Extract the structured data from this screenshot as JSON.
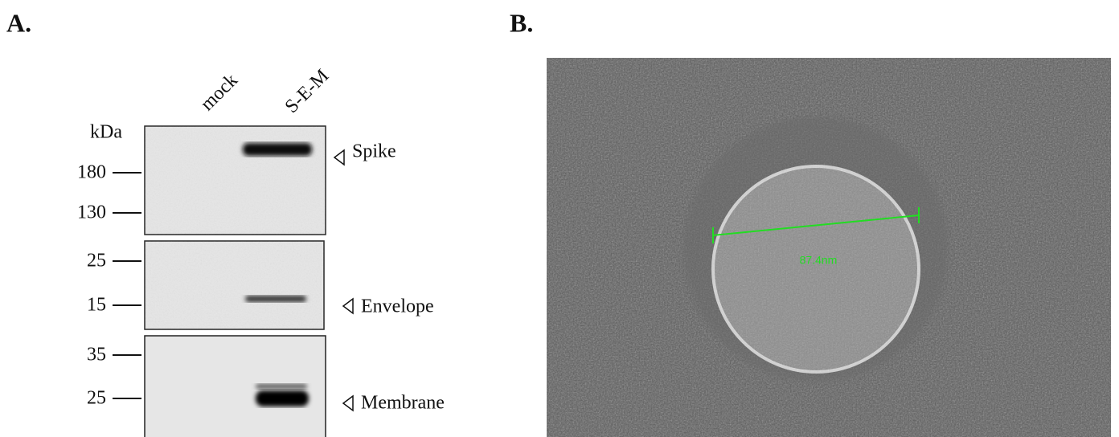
{
  "panel_a": {
    "label": "A.",
    "lanes": [
      "mock",
      "S-E-M"
    ],
    "unit": "kDa",
    "blots": [
      {
        "markers": [
          "180",
          "130"
        ],
        "protein": "Spike"
      },
      {
        "markers": [
          "25",
          "15"
        ],
        "protein": "Envelope"
      },
      {
        "markers": [
          "35",
          "25"
        ],
        "protein": "Membrane"
      }
    ]
  },
  "panel_b": {
    "label": "B.",
    "measurement": "87.4nm"
  }
}
